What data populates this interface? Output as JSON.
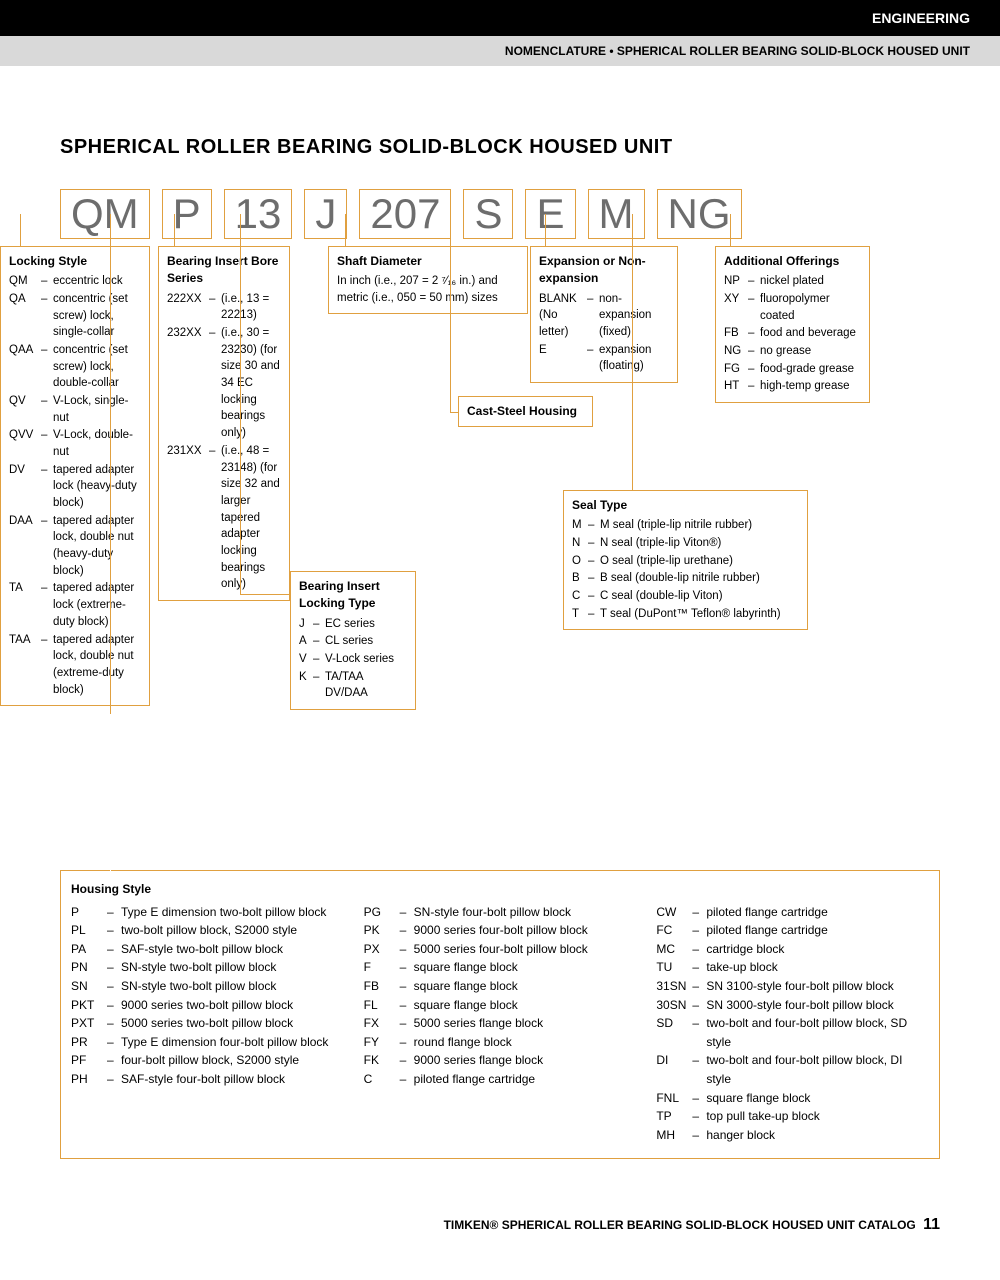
{
  "header": {
    "engineering": "ENGINEERING",
    "subtitle": "NOMENCLATURE • SPHERICAL ROLLER BEARING SOLID-BLOCK HOUSED UNIT"
  },
  "title": "SPHERICAL ROLLER BEARING SOLID-BLOCK HOUSED UNIT",
  "codes": [
    "QM",
    "P",
    "13",
    "J",
    "207",
    "S",
    "E",
    "M",
    "NG"
  ],
  "locking_style": {
    "title": "Locking Style",
    "items": [
      {
        "k": "QM",
        "v": "eccentric lock"
      },
      {
        "k": "QA",
        "v": "concentric (set screw) lock, single-collar"
      },
      {
        "k": "QAA",
        "v": "concentric (set screw) lock, double-collar"
      },
      {
        "k": "QV",
        "v": "V-Lock, single-nut"
      },
      {
        "k": "QVV",
        "v": "V-Lock, double-nut"
      },
      {
        "k": "DV",
        "v": "tapered adapter lock (heavy-duty block)"
      },
      {
        "k": "DAA",
        "v": "tapered adapter lock, double nut (heavy-duty block)"
      },
      {
        "k": "TA",
        "v": "tapered adapter lock (extreme-duty block)"
      },
      {
        "k": "TAA",
        "v": "tapered adapter lock, double nut (extreme-duty block)"
      }
    ]
  },
  "bore_series": {
    "title": "Bearing Insert Bore Series",
    "items": [
      {
        "k": "222XX",
        "v": "(i.e., 13 = 22213)"
      },
      {
        "k": "232XX",
        "v": "(i.e., 30 = 23230) (for size 30 and 34 EC locking bearings only)"
      },
      {
        "k": "231XX",
        "v": "(i.e., 48 = 23148) (for size 32 and larger tapered adapter locking bearings only)"
      }
    ]
  },
  "locking_type": {
    "title": "Bearing Insert Locking Type",
    "items": [
      {
        "k": "J",
        "v": "EC series"
      },
      {
        "k": "A",
        "v": "CL series"
      },
      {
        "k": "V",
        "v": "V-Lock series"
      },
      {
        "k": "K",
        "v": "TA/TAA DV/DAA"
      }
    ]
  },
  "shaft_diameter": {
    "title": "Shaft Diameter",
    "text": "In inch (i.e., 207 = 2 ⁷⁄₁₆ in.) and metric (i.e., 050 = 50 mm) sizes"
  },
  "cast_steel": {
    "title": "Cast-Steel Housing"
  },
  "expansion": {
    "title": "Expansion or Non-expansion",
    "items": [
      {
        "k": "BLANK (No letter)",
        "v": "non-expansion (fixed)"
      },
      {
        "k": "E",
        "v": "expansion (floating)"
      }
    ]
  },
  "seal_type": {
    "title": "Seal Type",
    "items": [
      {
        "k": "M",
        "v": "M seal (triple-lip nitrile rubber)"
      },
      {
        "k": "N",
        "v": "N seal (triple-lip Viton®)"
      },
      {
        "k": "O",
        "v": "O seal (triple-lip urethane)"
      },
      {
        "k": "B",
        "v": "B seal (double-lip nitrile rubber)"
      },
      {
        "k": "C",
        "v": "C seal (double-lip Viton)"
      },
      {
        "k": "T",
        "v": "T seal (DuPont™ Teflon® labyrinth)"
      }
    ]
  },
  "additional": {
    "title": "Additional Offerings",
    "items": [
      {
        "k": "NP",
        "v": "nickel plated"
      },
      {
        "k": "XY",
        "v": "fluoropolymer coated"
      },
      {
        "k": "FB",
        "v": "food and beverage"
      },
      {
        "k": "NG",
        "v": "no grease"
      },
      {
        "k": "FG",
        "v": "food-grade grease"
      },
      {
        "k": "HT",
        "v": "high-temp grease"
      }
    ]
  },
  "housing": {
    "title": "Housing Style",
    "col1": [
      {
        "k": "P",
        "v": "Type E dimension two-bolt pillow block"
      },
      {
        "k": "PL",
        "v": "two-bolt pillow block, S2000 style"
      },
      {
        "k": "PA",
        "v": "SAF-style two-bolt pillow block"
      },
      {
        "k": "PN",
        "v": "SN-style two-bolt pillow block"
      },
      {
        "k": "SN",
        "v": "SN-style two-bolt pillow block"
      },
      {
        "k": "PKT",
        "v": "9000 series two-bolt pillow block"
      },
      {
        "k": "PXT",
        "v": "5000 series two-bolt pillow block"
      },
      {
        "k": "PR",
        "v": "Type E dimension four-bolt pillow block"
      },
      {
        "k": "PF",
        "v": "four-bolt pillow block, S2000 style"
      },
      {
        "k": "PH",
        "v": "SAF-style four-bolt pillow block"
      }
    ],
    "col2": [
      {
        "k": "PG",
        "v": "SN-style four-bolt pillow block"
      },
      {
        "k": "PK",
        "v": "9000 series four-bolt pillow block"
      },
      {
        "k": "PX",
        "v": "5000 series four-bolt pillow block"
      },
      {
        "k": "F",
        "v": "square flange block"
      },
      {
        "k": "FB",
        "v": "square flange block"
      },
      {
        "k": "FL",
        "v": "square flange block"
      },
      {
        "k": "FX",
        "v": "5000 series flange block"
      },
      {
        "k": "FY",
        "v": "round flange block"
      },
      {
        "k": "FK",
        "v": "9000 series flange block"
      },
      {
        "k": "C",
        "v": "piloted flange cartridge"
      }
    ],
    "col3": [
      {
        "k": "CW",
        "v": "piloted flange cartridge"
      },
      {
        "k": "FC",
        "v": "piloted flange cartridge"
      },
      {
        "k": "MC",
        "v": "cartridge block"
      },
      {
        "k": "TU",
        "v": "take-up block"
      },
      {
        "k": "31SN",
        "v": "SN 3100-style four-bolt pillow block"
      },
      {
        "k": "30SN",
        "v": "SN 3000-style four-bolt pillow block"
      },
      {
        "k": "SD",
        "v": "two-bolt and four-bolt pillow block, SD style"
      },
      {
        "k": "DI",
        "v": "two-bolt and four-bolt pillow block, DI style"
      },
      {
        "k": "FNL",
        "v": "square flange block"
      },
      {
        "k": "TP",
        "v": "top pull take-up block"
      },
      {
        "k": "MH",
        "v": "hanger block"
      }
    ]
  },
  "footer": {
    "text": "TIMKEN® SPHERICAL ROLLER BEARING SOLID-BLOCK HOUSED UNIT CATALOG",
    "page": "11"
  },
  "colors": {
    "accent": "#e0a040",
    "black": "#000000",
    "gray_bar": "#d9d9d9",
    "code_text": "#6d6d6d"
  }
}
